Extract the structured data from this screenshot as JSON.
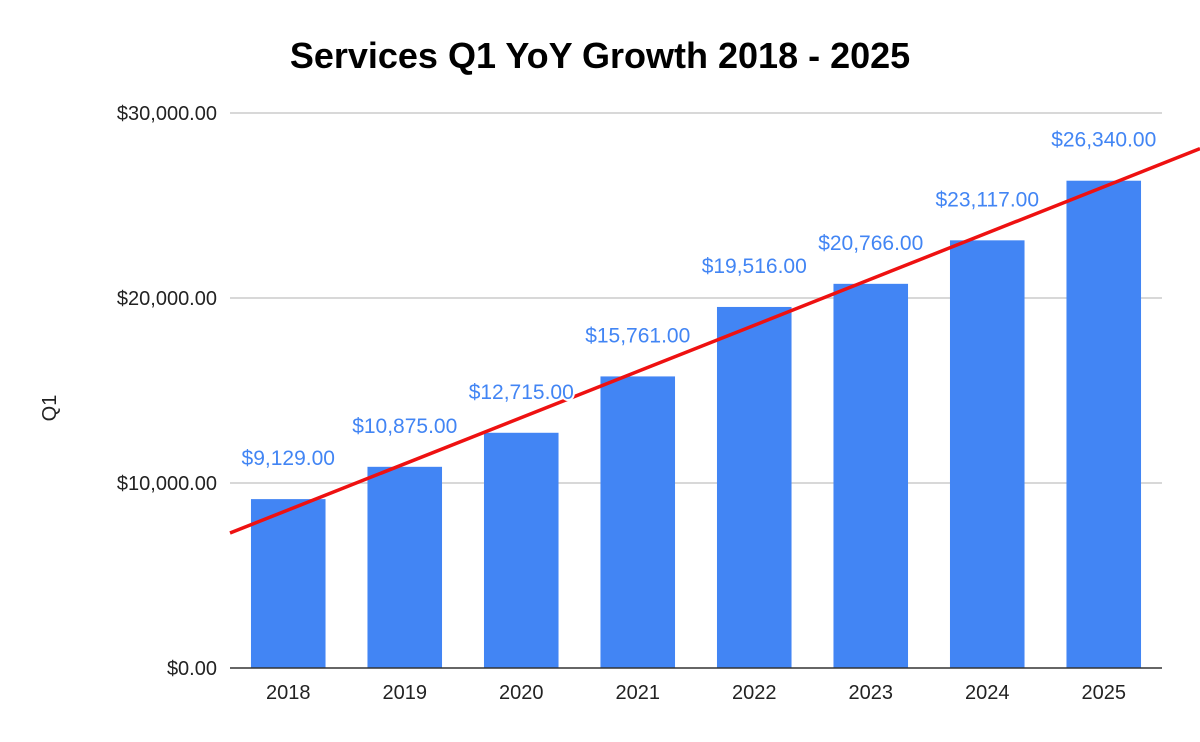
{
  "chart_data": {
    "type": "bar",
    "title": "Services Q1 YoY Growth 2018 - 2025",
    "ylabel": "Q1",
    "categories": [
      "2018",
      "2019",
      "2020",
      "2021",
      "2022",
      "2023",
      "2024",
      "2025"
    ],
    "values": [
      9129,
      10875,
      12715,
      15761,
      19516,
      20766,
      23117,
      26340
    ],
    "data_labels": [
      "$9,129.00",
      "$10,875.00",
      "$12,715.00",
      "$15,761.00",
      "$19,516.00",
      "$20,766.00",
      "$23,117.00",
      "$26,340.00"
    ],
    "ylim": [
      0,
      30000
    ],
    "yticks": [
      0,
      10000,
      20000,
      30000
    ],
    "ytick_labels": [
      "$0.00",
      "$10,000.00",
      "$20,000.00",
      "$30,000.00"
    ],
    "grid": true,
    "trendline": {
      "type": "linear",
      "color": "#ee1111"
    },
    "colors": {
      "bar": "#4285f4",
      "data_label": "#4285f4",
      "trendline": "#ee1111"
    }
  }
}
